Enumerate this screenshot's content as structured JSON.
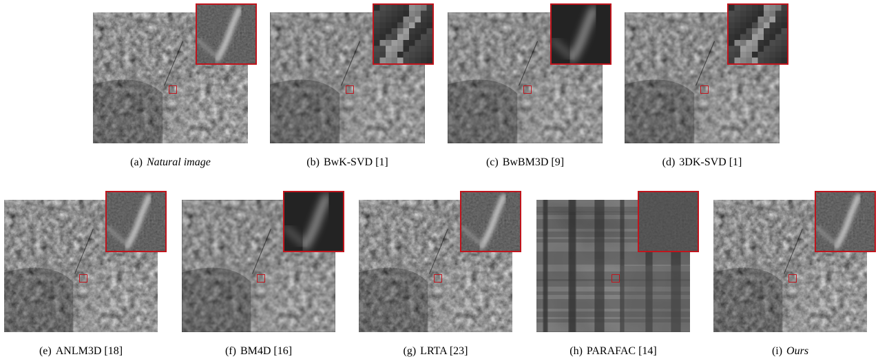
{
  "figure": {
    "panels": [
      {
        "letter": "(a)",
        "name": "Natural image",
        "ref": "",
        "italic": true,
        "style": "natural"
      },
      {
        "letter": "(b)",
        "name": "BwK-SVD",
        "ref": "[1]",
        "italic": false,
        "style": "pixelated"
      },
      {
        "letter": "(c)",
        "name": "BwBM3D",
        "ref": "[9]",
        "italic": false,
        "style": "smooth"
      },
      {
        "letter": "(d)",
        "name": "3DK-SVD",
        "ref": "[1]",
        "italic": false,
        "style": "pixelated"
      },
      {
        "letter": "(e)",
        "name": "ANLM3D",
        "ref": "[18]",
        "italic": false,
        "style": "natural"
      },
      {
        "letter": "(f)",
        "name": "BM4D",
        "ref": "[16]",
        "italic": false,
        "style": "smooth"
      },
      {
        "letter": "(g)",
        "name": "LRTA",
        "ref": "[23]",
        "italic": false,
        "style": "natural"
      },
      {
        "letter": "(h)",
        "name": "PARAFAC",
        "ref": "[14]",
        "italic": false,
        "style": "flat"
      },
      {
        "letter": "(i)",
        "name": "Ours",
        "ref": "",
        "italic": true,
        "style": "natural"
      }
    ],
    "colors": {
      "roi_border": "#c0141c"
    }
  }
}
